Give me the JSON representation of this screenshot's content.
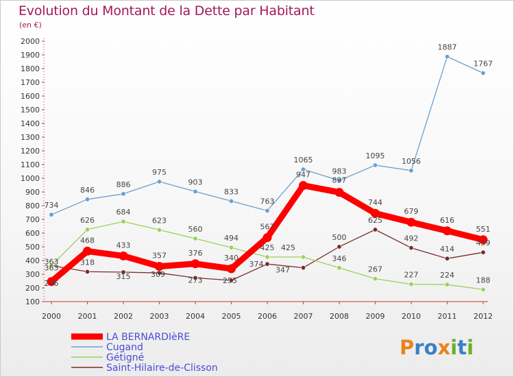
{
  "header": {
    "title": "Evolution du Montant de la Dette par Habitant",
    "subtitle": "(en €)"
  },
  "logo": {
    "text": "Proxiti"
  },
  "colors": {
    "title": "#a0185a",
    "legend_text": "#4a4ad8",
    "la_bernardiere": "#ff0000",
    "cugand": "#6a9fd0",
    "getigne": "#9bd05a",
    "saint_hilaire": "#7a2a2a"
  },
  "chart_data": {
    "type": "line",
    "title": "Evolution du Montant de la Dette par Habitant",
    "subtitle": "(en €)",
    "x": [
      "2000",
      "2001",
      "2002",
      "2003",
      "2004",
      "2005",
      "2006",
      "2007",
      "2008",
      "2009",
      "2010",
      "2011",
      "2012"
    ],
    "ylim": [
      100,
      2000
    ],
    "yticks": [
      100,
      200,
      300,
      400,
      500,
      600,
      700,
      800,
      900,
      1000,
      1100,
      1200,
      1300,
      1400,
      1500,
      1600,
      1700,
      1800,
      1900,
      2000
    ],
    "grid": false,
    "legend_position": "bottom-left",
    "series": [
      {
        "name": "LA BERNARDIèRE",
        "values": [
          246,
          468,
          433,
          357,
          376,
          340,
          567,
          947,
          897,
          744,
          679,
          616,
          551
        ],
        "color": "#ff0000"
      },
      {
        "name": "Cugand",
        "values": [
          734,
          846,
          886,
          975,
          903,
          833,
          763,
          1065,
          983,
          1095,
          1056,
          1887,
          1767
        ],
        "color": "#6a9fd0"
      },
      {
        "name": "Gétigné",
        "values": [
          363,
          626,
          684,
          623,
          560,
          494,
          425,
          425,
          346,
          267,
          227,
          224,
          188
        ],
        "color": "#9bd05a"
      },
      {
        "name": "Saint-Hilaire-de-Clisson",
        "values": [
          363,
          318,
          315,
          309,
          273,
          255,
          374,
          347,
          500,
          625,
          492,
          414,
          459
        ],
        "color": "#7a2a2a"
      }
    ]
  }
}
